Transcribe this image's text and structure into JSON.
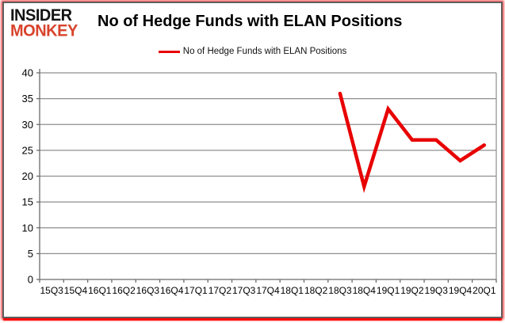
{
  "logo": {
    "line1": "INSIDER",
    "line2": "MONKEY"
  },
  "header": {
    "title": "No of Hedge Funds with ELAN Positions"
  },
  "legend": {
    "label": "No of Hedge Funds with ELAN Positions",
    "color": "#e80000"
  },
  "frame": {
    "border_color": "#5f5f5f",
    "shadow_color": "#ff0000"
  },
  "chart_data": {
    "type": "line",
    "title": "No of Hedge Funds with ELAN Positions",
    "categories": [
      "15Q3",
      "15Q4",
      "16Q1",
      "16Q2",
      "16Q3",
      "16Q4",
      "17Q1",
      "17Q2",
      "17Q3",
      "17Q4",
      "18Q1",
      "18Q2",
      "18Q3",
      "18Q4",
      "19Q1",
      "19Q2",
      "19Q3",
      "19Q4",
      "20Q1"
    ],
    "series": [
      {
        "name": "No of Hedge Funds with ELAN Positions",
        "color": "#e80000",
        "values": [
          null,
          null,
          null,
          null,
          null,
          null,
          null,
          null,
          null,
          null,
          null,
          null,
          36,
          18,
          33,
          27,
          27,
          23,
          26
        ]
      }
    ],
    "ylim": [
      0,
      40
    ],
    "ytick": 5,
    "grid": true,
    "legend_position": "top",
    "xlabel": "",
    "ylabel": "",
    "colors": {
      "gridline": "#8e8e8e",
      "axis": "#6b6b6b",
      "text": "#000000"
    }
  }
}
